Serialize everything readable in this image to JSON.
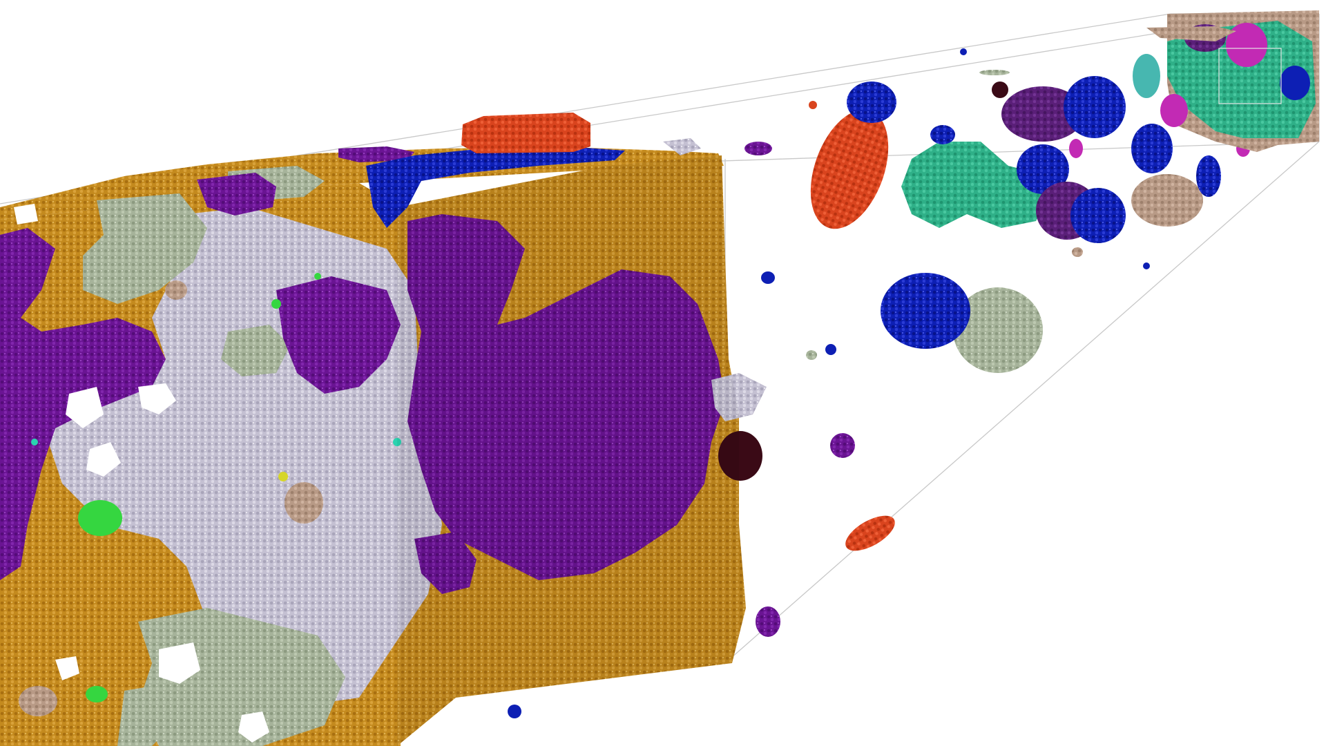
{
  "scene": {
    "background": "#ffffff",
    "guide_line_color": "#c8c8c8",
    "phase_colors": {
      "ochre": "#c48a1e",
      "violet": "#6a1493",
      "lavender_grey": "#c4c0d2",
      "sage": "#a6b39a",
      "royal_blue": "#0d1fb4",
      "vermilion": "#d9441e",
      "teal_green": "#2fb088",
      "plum": "#5a1f78",
      "tan": "#b89a86",
      "magenta": "#c22ab4",
      "aqua": "#47b7b0",
      "maroon": "#3a0a16",
      "lime": "#35d640",
      "cyan_teal": "#2ad3b0",
      "yellow": "#d6d62a",
      "peach": "#d9a27e"
    }
  }
}
